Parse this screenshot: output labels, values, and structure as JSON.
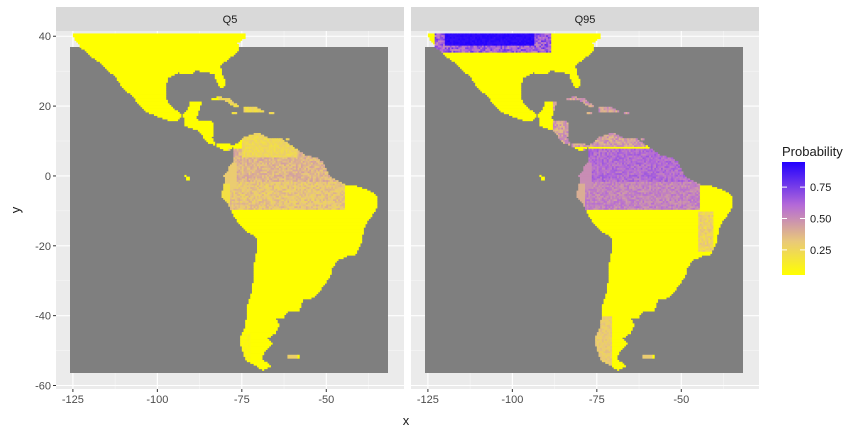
{
  "chart_data": {
    "type": "heatmap",
    "facets": [
      "Q5",
      "Q95"
    ],
    "xlabel": "x",
    "ylabel": "y",
    "xlim": [
      -130,
      -27
    ],
    "ylim": [
      -61,
      41.5
    ],
    "x_ticks": [
      -125,
      -100,
      -75,
      -50
    ],
    "y_ticks": [
      40,
      20,
      0,
      -20,
      -40,
      -60
    ],
    "grid": true,
    "legend": {
      "title": "Probability",
      "placement": "right",
      "breaks": [
        0.25,
        0.5,
        0.75
      ],
      "range": [
        0.05,
        0.95
      ],
      "colors": [
        "#ffff00",
        "#e0b080",
        "#a050e0",
        "#2200ff"
      ]
    },
    "background_color": "#7f7f7f",
    "regions": [
      {
        "facet": "Q5",
        "region": "North America (south)",
        "probability": 0.03
      },
      {
        "facet": "Q5",
        "region": "Central America",
        "probability": 0.03
      },
      {
        "facet": "Q5",
        "region": "Caribbean",
        "probability": 0.25
      },
      {
        "facet": "Q5",
        "region": "Amazon",
        "probability": 0.3
      },
      {
        "facet": "Q5",
        "region": "Southern South America",
        "probability": 0.03
      },
      {
        "facet": "Q95",
        "region": "North America (south)",
        "probability": 0.03
      },
      {
        "facet": "Q95",
        "region": "North America (north edge)",
        "probability": 0.95
      },
      {
        "facet": "Q95",
        "region": "Caribbean",
        "probability": 0.45
      },
      {
        "facet": "Q95",
        "region": "Amazon",
        "probability": 0.5
      },
      {
        "facet": "Q95",
        "region": "Southern South America",
        "probability": 0.05
      },
      {
        "facet": "Q95",
        "region": "Patagonia",
        "probability": 0.3
      }
    ]
  }
}
